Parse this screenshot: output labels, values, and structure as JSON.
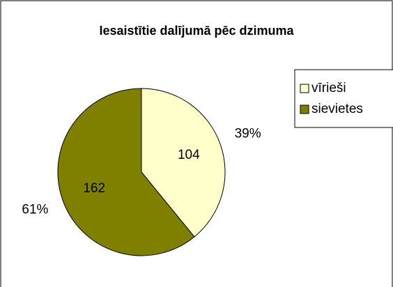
{
  "chart_data": {
    "type": "pie",
    "title": "Iesaistītie dalījumā pēc dzimuma",
    "categories": [
      "vīrieši",
      "sievietes"
    ],
    "values": [
      104,
      162
    ],
    "percent_labels": [
      "39%",
      "61%"
    ],
    "colors": [
      "#ffffcc",
      "#808000"
    ],
    "legend": "right"
  }
}
